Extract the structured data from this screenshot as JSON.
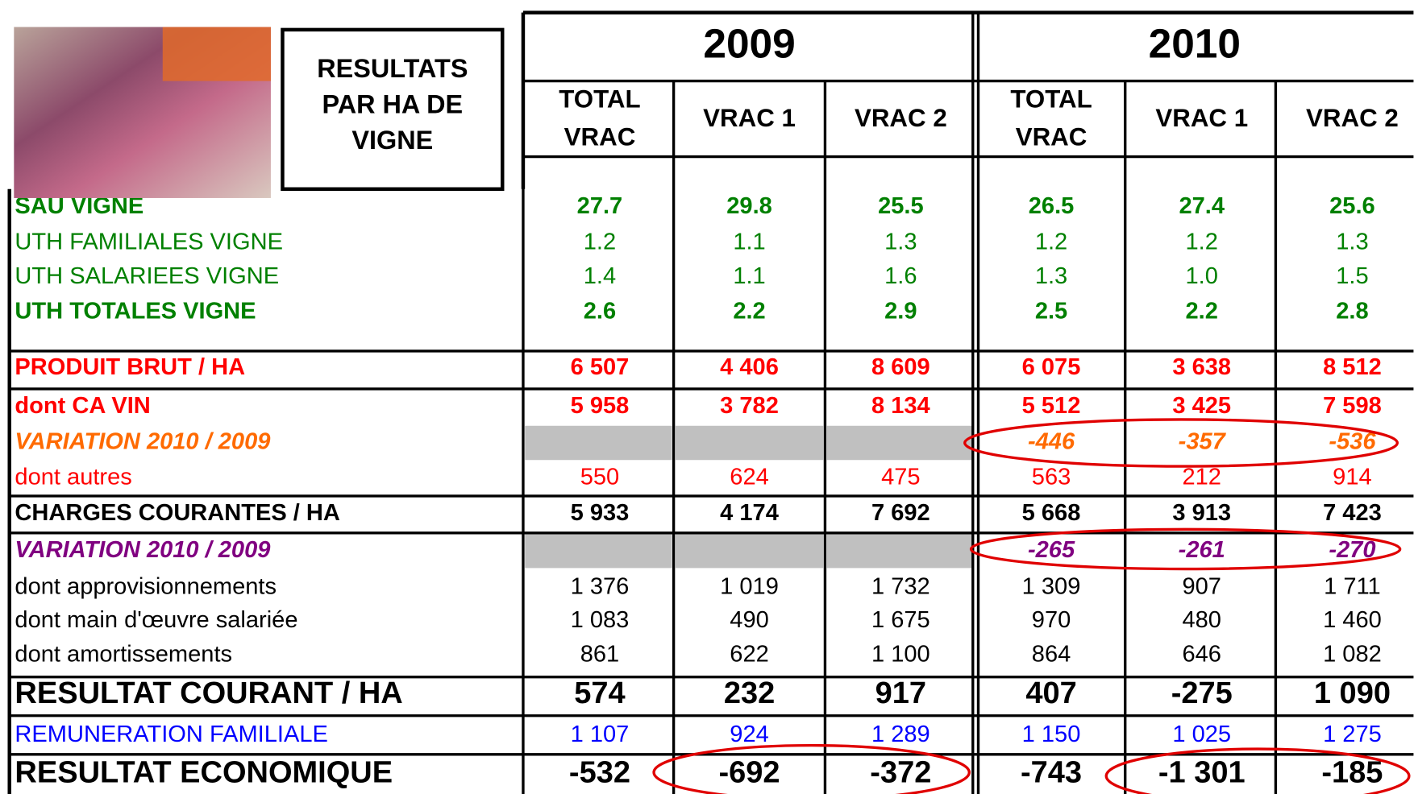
{
  "header": {
    "title": [
      "RESULTATS",
      "PAR HA DE",
      "VIGNE"
    ],
    "years": [
      {
        "year": "2009",
        "columns": [
          [
            "TOTAL",
            "VRAC"
          ],
          [
            "VRAC 1"
          ],
          [
            "VRAC 2"
          ]
        ]
      },
      {
        "year": "2010",
        "columns": [
          [
            "TOTAL",
            "VRAC"
          ],
          [
            "VRAC 1"
          ],
          [
            "VRAC 2"
          ]
        ]
      }
    ]
  },
  "rows": [
    {
      "label": "SAU VIGNE",
      "values": [
        "27.7",
        "29.8",
        "25.5",
        "26.5",
        "27.4",
        "25.6"
      ]
    },
    {
      "label": "UTH FAMILIALES VIGNE",
      "values": [
        "1.2",
        "1.1",
        "1.3",
        "1.2",
        "1.2",
        "1.3"
      ]
    },
    {
      "label": "UTH SALARIEES VIGNE",
      "values": [
        "1.4",
        "1.1",
        "1.6",
        "1.3",
        "1.0",
        "1.5"
      ]
    },
    {
      "label": "UTH TOTALES VIGNE",
      "values": [
        "2.6",
        "2.2",
        "2.9",
        "2.5",
        "2.2",
        "2.8"
      ]
    },
    {
      "label": "PRODUIT BRUT / HA",
      "values": [
        "6 507",
        "4 406",
        "8 609",
        "6 075",
        "3 638",
        "8 512"
      ]
    },
    {
      "label": "dont CA VIN",
      "values": [
        "5 958",
        "3 782",
        "8 134",
        "5 512",
        "3 425",
        "7 598"
      ]
    },
    {
      "label": "VARIATION 2010 / 2009",
      "values": [
        null,
        null,
        null,
        "-446",
        "-357",
        "-536"
      ]
    },
    {
      "label": "dont autres",
      "values": [
        "550",
        "624",
        "475",
        "563",
        "212",
        "914"
      ]
    },
    {
      "label": "CHARGES COURANTES / HA",
      "values": [
        "5 933",
        "4 174",
        "7 692",
        "5 668",
        "3 913",
        "7 423"
      ]
    },
    {
      "label": "VARIATION 2010 / 2009",
      "values": [
        null,
        null,
        null,
        "-265",
        "-261",
        "-270"
      ]
    },
    {
      "label": "dont approvisionnements",
      "values": [
        "1 376",
        "1 019",
        "1 732",
        "1 309",
        "907",
        "1 711"
      ]
    },
    {
      "label": "dont main d'œuvre salariée",
      "values": [
        "1 083",
        "490",
        "1 675",
        "970",
        "480",
        "1 460"
      ]
    },
    {
      "label": "dont amortissements",
      "values": [
        "861",
        "622",
        "1 100",
        "864",
        "646",
        "1 082"
      ]
    },
    {
      "label": "RESULTAT COURANT / HA",
      "values": [
        "574",
        "232",
        "917",
        "407",
        "-275",
        "1 090"
      ]
    },
    {
      "label": "REMUNERATION FAMILIALE",
      "values": [
        "1 107",
        "924",
        "1 289",
        "1 150",
        "1 025",
        "1 275"
      ]
    },
    {
      "label": "RESULTAT ECONOMIQUE",
      "values": [
        "-532",
        "-692",
        "-372",
        "-743",
        "-1 301",
        "-185"
      ]
    }
  ]
}
